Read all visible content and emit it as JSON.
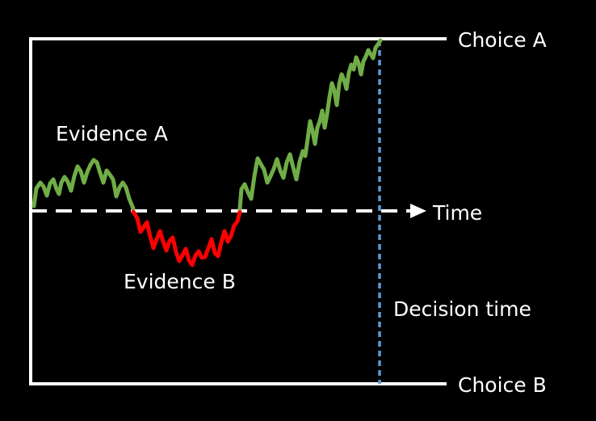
{
  "labels": {
    "choice_a": "Choice A",
    "choice_b": "Choice B",
    "time": "Time",
    "evidence_a": "Evidence A",
    "evidence_b": "Evidence B",
    "decision_time": "Decision time"
  },
  "colors": {
    "background": "#000000",
    "bounds": "#ffffff",
    "evidence_a": "#70ad47",
    "evidence_b": "#ff0000",
    "decision_line": "#5b9bd5"
  }
}
